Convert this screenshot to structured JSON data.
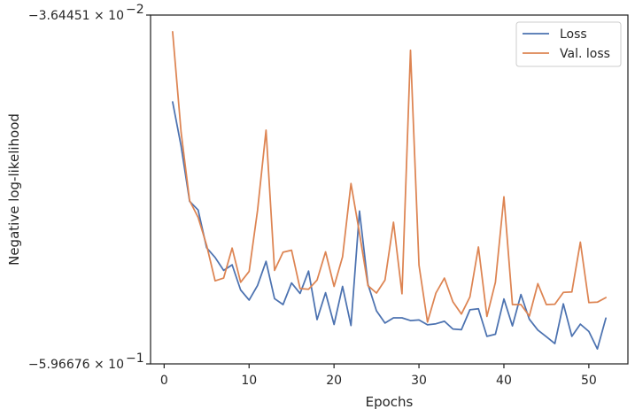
{
  "chart_data": {
    "type": "line",
    "xlabel": "Epochs",
    "ylabel": "Negative log-likelihood",
    "xlim": [
      -1.6,
      54.6
    ],
    "ylim": [
      0,
      1
    ],
    "y_scale": "log (labels as shown)",
    "x_ticks": [
      0,
      10,
      20,
      30,
      40,
      50
    ],
    "y_tick_labels": [
      {
        "pos": 1,
        "text": "−3.64451 × 10",
        "sup": "−2"
      },
      {
        "pos": 0,
        "text": "−5.96676 × 10",
        "sup": "−1"
      }
    ],
    "legend": {
      "position": "top-right"
    },
    "grid": false,
    "series": [
      {
        "name": "Loss",
        "color": "#4c72b0",
        "x": [
          1,
          2,
          3,
          4,
          5,
          6,
          7,
          8,
          9,
          10,
          11,
          12,
          13,
          14,
          15,
          16,
          17,
          18,
          19,
          20,
          21,
          22,
          23,
          24,
          25,
          26,
          27,
          28,
          29,
          30,
          31,
          32,
          33,
          34,
          35,
          36,
          37,
          38,
          39,
          40,
          41,
          42,
          43,
          44,
          45,
          46,
          47,
          48,
          49,
          50,
          51,
          52
        ],
        "values": [
          0.751,
          0.624,
          0.466,
          0.441,
          0.333,
          0.305,
          0.268,
          0.284,
          0.212,
          0.183,
          0.225,
          0.294,
          0.187,
          0.17,
          0.232,
          0.202,
          0.266,
          0.127,
          0.204,
          0.113,
          0.222,
          0.11,
          0.438,
          0.228,
          0.152,
          0.117,
          0.132,
          0.132,
          0.124,
          0.126,
          0.112,
          0.115,
          0.122,
          0.1,
          0.098,
          0.155,
          0.158,
          0.079,
          0.085,
          0.186,
          0.109,
          0.199,
          0.128,
          0.097,
          0.078,
          0.058,
          0.172,
          0.079,
          0.114,
          0.093,
          0.043,
          0.131
        ]
      },
      {
        "name": "Val. loss",
        "color": "#dd8452",
        "x": [
          1,
          2,
          3,
          4,
          5,
          6,
          7,
          8,
          9,
          10,
          11,
          12,
          13,
          14,
          15,
          16,
          17,
          18,
          19,
          20,
          21,
          22,
          23,
          24,
          25,
          26,
          27,
          28,
          29,
          30,
          31,
          32,
          33,
          34,
          35,
          36,
          37,
          38,
          39,
          40,
          41,
          42,
          43,
          44,
          45,
          46,
          47,
          48,
          49,
          50,
          51,
          52
        ],
        "values": [
          0.952,
          0.664,
          0.468,
          0.42,
          0.34,
          0.238,
          0.246,
          0.332,
          0.234,
          0.265,
          0.44,
          0.67,
          0.268,
          0.32,
          0.326,
          0.216,
          0.214,
          0.24,
          0.321,
          0.222,
          0.307,
          0.517,
          0.375,
          0.224,
          0.203,
          0.24,
          0.406,
          0.201,
          0.899,
          0.283,
          0.12,
          0.203,
          0.246,
          0.178,
          0.143,
          0.192,
          0.335,
          0.136,
          0.234,
          0.479,
          0.17,
          0.17,
          0.137,
          0.23,
          0.17,
          0.171,
          0.205,
          0.206,
          0.349,
          0.176,
          0.177,
          0.19
        ]
      }
    ]
  }
}
